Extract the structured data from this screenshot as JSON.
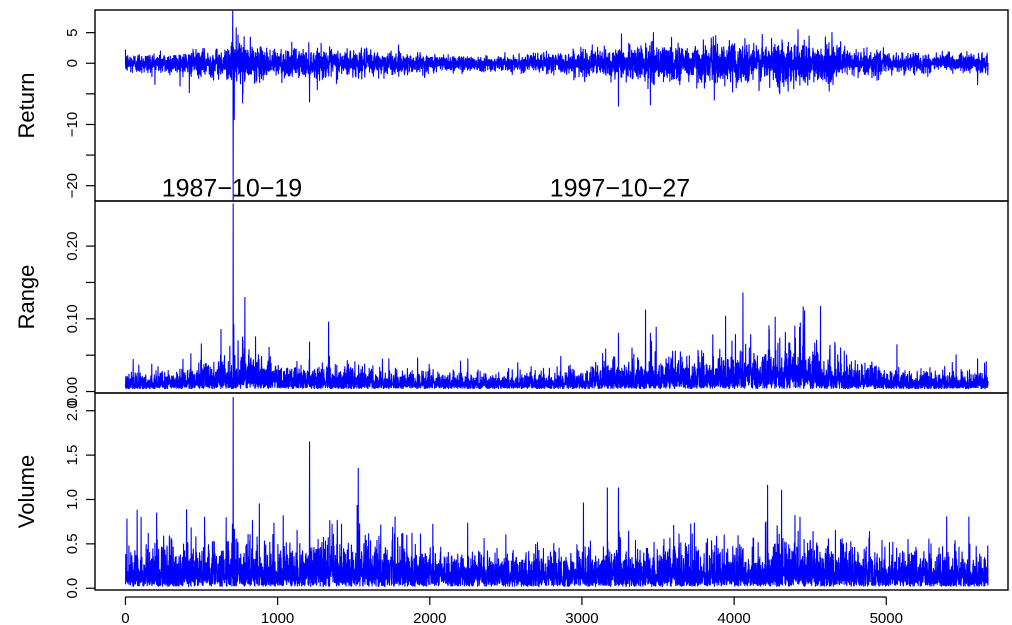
{
  "chart_data": {
    "type": "line",
    "x_ticks": [
      0,
      1000,
      2000,
      3000,
      4000,
      5000
    ],
    "x_tick_labels": [
      "0",
      "1000",
      "2000",
      "3000",
      "4000",
      "5000"
    ],
    "xlim": [
      -200,
      5800
    ],
    "n_obs": 5670,
    "line_color": "#0000ff",
    "panels": [
      {
        "name": "return",
        "ylabel": "Return",
        "ylim": [
          -22.5,
          8.7
        ],
        "yticks": [
          5,
          0,
          -5,
          -10,
          -15,
          -20
        ],
        "ytick_labels": [
          "5",
          "0",
          "",
          "−10",
          "",
          "−20"
        ],
        "annotations": [
          {
            "text": "1987−10−19",
            "x": 700,
            "y": -20
          },
          {
            "text": "1997−10−27",
            "x": 3250,
            "y": -20
          }
        ],
        "noise": {
          "anchors": [
            [
              0,
              0.9
            ],
            [
              400,
              1.0
            ],
            [
              650,
              1.3
            ],
            [
              760,
              2.0
            ],
            [
              900,
              1.3
            ],
            [
              1500,
              1.2
            ],
            [
              2000,
              0.8
            ],
            [
              2500,
              0.6
            ],
            [
              3000,
              1.1
            ],
            [
              3500,
              1.6
            ],
            [
              4000,
              1.8
            ],
            [
              4450,
              2.0
            ],
            [
              4700,
              1.4
            ],
            [
              5000,
              0.9
            ],
            [
              5670,
              0.8
            ]
          ],
          "base": 0.0
        },
        "spikes": [
          {
            "x": 705,
            "y": 8.5
          },
          {
            "x": 708,
            "y": -22.5
          },
          {
            "x": 715,
            "y": -9.2
          },
          {
            "x": 728,
            "y": 5.8
          },
          {
            "x": 740,
            "y": 4.6
          },
          {
            "x": 770,
            "y": -6.5
          },
          {
            "x": 1210,
            "y": -6.3
          },
          {
            "x": 420,
            "y": -4.8
          },
          {
            "x": 3240,
            "y": -7.0
          },
          {
            "x": 3260,
            "y": 4.8
          },
          {
            "x": 3450,
            "y": -6.8
          },
          {
            "x": 3470,
            "y": 5.0
          },
          {
            "x": 3870,
            "y": -6.0
          },
          {
            "x": 4420,
            "y": 5.5
          },
          {
            "x": 4300,
            "y": -5.0
          },
          {
            "x": 5600,
            "y": -3.5
          }
        ]
      },
      {
        "name": "range",
        "ylabel": "Range",
        "ylim": [
          -0.002,
          0.262
        ],
        "yticks": [
          0.0,
          0.05,
          0.1,
          0.15,
          0.2
        ],
        "ytick_labels": [
          "0.00",
          "",
          "0.10",
          "",
          "0.20"
        ],
        "annotations": [],
        "noise": {
          "anchors": [
            [
              0,
              0.008
            ],
            [
              400,
              0.012
            ],
            [
              700,
              0.018
            ],
            [
              800,
              0.025
            ],
            [
              1000,
              0.014
            ],
            [
              1500,
              0.013
            ],
            [
              2000,
              0.009
            ],
            [
              2500,
              0.008
            ],
            [
              3000,
              0.012
            ],
            [
              3500,
              0.018
            ],
            [
              4000,
              0.02
            ],
            [
              4450,
              0.03
            ],
            [
              4700,
              0.017
            ],
            [
              5000,
              0.01
            ],
            [
              5670,
              0.009
            ]
          ],
          "base": 0.004
        },
        "spikes": [
          {
            "x": 708,
            "y": 0.258
          },
          {
            "x": 712,
            "y": 0.092
          },
          {
            "x": 740,
            "y": 0.07
          },
          {
            "x": 770,
            "y": 0.075
          },
          {
            "x": 1210,
            "y": 0.068
          },
          {
            "x": 430,
            "y": 0.052
          },
          {
            "x": 3240,
            "y": 0.08
          },
          {
            "x": 3450,
            "y": 0.08
          },
          {
            "x": 3860,
            "y": 0.078
          },
          {
            "x": 4100,
            "y": 0.06
          },
          {
            "x": 4230,
            "y": 0.058
          },
          {
            "x": 4430,
            "y": 0.088
          },
          {
            "x": 5600,
            "y": 0.045
          }
        ]
      },
      {
        "name": "volume",
        "ylabel": "Volume",
        "ylim": [
          -0.02,
          2.2
        ],
        "yticks": [
          0.0,
          0.5,
          1.0,
          1.5,
          2.0
        ],
        "ytick_labels": [
          "0.0",
          "0.5",
          "1.0",
          "1.5",
          "2.0"
        ],
        "annotations": [],
        "noise": {
          "anchors": [
            [
              0,
              0.18
            ],
            [
              500,
              0.22
            ],
            [
              1000,
              0.2
            ],
            [
              1500,
              0.24
            ],
            [
              2000,
              0.18
            ],
            [
              2500,
              0.16
            ],
            [
              3000,
              0.18
            ],
            [
              3500,
              0.18
            ],
            [
              4000,
              0.2
            ],
            [
              4500,
              0.22
            ],
            [
              5000,
              0.18
            ],
            [
              5670,
              0.16
            ]
          ],
          "base": 0.02
        },
        "spikes": [
          {
            "x": 708,
            "y": 2.15
          },
          {
            "x": 1210,
            "y": 1.65
          },
          {
            "x": 1530,
            "y": 1.35
          },
          {
            "x": 4220,
            "y": 1.16
          },
          {
            "x": 3240,
            "y": 1.13
          },
          {
            "x": 3010,
            "y": 0.96
          },
          {
            "x": 880,
            "y": 0.95
          },
          {
            "x": 2020,
            "y": 0.72
          },
          {
            "x": 520,
            "y": 0.8
          },
          {
            "x": 10,
            "y": 0.78
          },
          {
            "x": 1420,
            "y": 0.72
          },
          {
            "x": 4400,
            "y": 0.82
          }
        ]
      }
    ]
  }
}
